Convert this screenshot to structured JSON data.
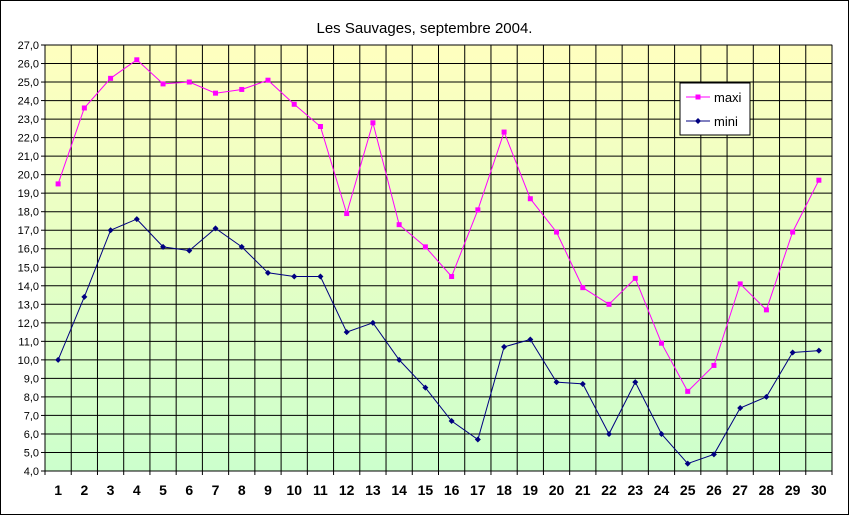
{
  "chart_data": {
    "type": "line",
    "title": "Les Sauvages, septembre 2004.",
    "xlabel": "",
    "ylabel": "",
    "categories": [
      "1",
      "2",
      "3",
      "4",
      "5",
      "6",
      "7",
      "8",
      "9",
      "10",
      "11",
      "12",
      "13",
      "14",
      "15",
      "16",
      "17",
      "18",
      "19",
      "20",
      "21",
      "22",
      "23",
      "24",
      "25",
      "26",
      "27",
      "28",
      "29",
      "30"
    ],
    "yticks": [
      "4,0",
      "5,0",
      "6,0",
      "7,0",
      "8,0",
      "9,0",
      "10,0",
      "11,0",
      "12,0",
      "13,0",
      "14,0",
      "15,0",
      "16,0",
      "17,0",
      "18,0",
      "19,0",
      "20,0",
      "21,0",
      "22,0",
      "23,0",
      "24,0",
      "25,0",
      "26,0",
      "27,0"
    ],
    "ylim": [
      4,
      27
    ],
    "grid": true,
    "legend_position": "top-right",
    "series": [
      {
        "name": "maxi",
        "color": "#ff00ff",
        "marker": "square",
        "values": [
          19.5,
          23.6,
          25.2,
          26.2,
          24.9,
          25.0,
          24.4,
          24.6,
          25.1,
          23.8,
          22.6,
          17.9,
          22.8,
          17.3,
          16.1,
          14.5,
          18.1,
          22.3,
          18.7,
          16.9,
          13.9,
          13.0,
          14.4,
          10.9,
          8.3,
          9.7,
          14.1,
          12.7,
          16.9,
          19.7
        ]
      },
      {
        "name": "mini",
        "color": "#000080",
        "marker": "diamond",
        "values": [
          10.0,
          13.4,
          17.0,
          17.6,
          16.1,
          15.9,
          17.1,
          16.1,
          14.7,
          14.5,
          14.5,
          11.5,
          12.0,
          10.0,
          8.5,
          6.7,
          5.7,
          10.7,
          11.1,
          8.8,
          8.7,
          6.0,
          8.8,
          6.0,
          4.4,
          4.9,
          7.4,
          8.0,
          10.4,
          10.5
        ]
      }
    ]
  }
}
